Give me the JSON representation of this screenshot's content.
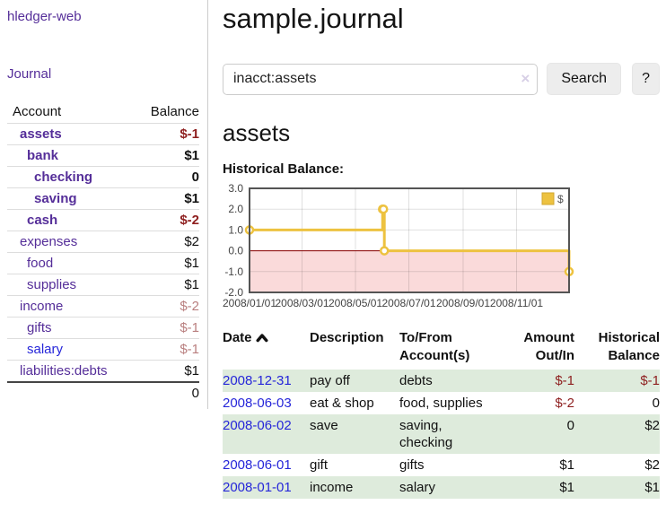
{
  "app": {
    "brand": "hledger-web"
  },
  "sidebar": {
    "journal_link": "Journal",
    "accounts_table": {
      "headers": {
        "account": "Account",
        "balance": "Balance"
      },
      "rows": [
        {
          "name": "assets",
          "balance": "$-1",
          "indent": 1,
          "bold": true,
          "balance_color": "negative",
          "link_color": "purple"
        },
        {
          "name": "bank",
          "balance": "$1",
          "indent": 2,
          "bold": true,
          "balance_color": "normal",
          "link_color": "purple"
        },
        {
          "name": "checking",
          "balance": "0",
          "indent": 3,
          "bold": true,
          "balance_color": "normal",
          "link_color": "purple"
        },
        {
          "name": "saving",
          "balance": "$1",
          "indent": 3,
          "bold": true,
          "balance_color": "normal",
          "link_color": "purple"
        },
        {
          "name": "cash",
          "balance": "$-2",
          "indent": 2,
          "bold": true,
          "balance_color": "negative",
          "link_color": "purple"
        },
        {
          "name": "expenses",
          "balance": "$2",
          "indent": 1,
          "bold": false,
          "balance_color": "normal",
          "link_color": "purple"
        },
        {
          "name": "food",
          "balance": "$1",
          "indent": 2,
          "bold": false,
          "balance_color": "normal",
          "link_color": "purple"
        },
        {
          "name": "supplies",
          "balance": "$1",
          "indent": 2,
          "bold": false,
          "balance_color": "normal",
          "link_color": "purple"
        },
        {
          "name": "income",
          "balance": "$-2",
          "indent": 1,
          "bold": false,
          "balance_color": "negative-muted",
          "link_color": "purple"
        },
        {
          "name": "gifts",
          "balance": "$-1",
          "indent": 2,
          "bold": false,
          "balance_color": "negative-muted",
          "link_color": "purple"
        },
        {
          "name": "salary",
          "balance": "$-1",
          "indent": 2,
          "bold": false,
          "balance_color": "negative-muted",
          "link_color": "blue"
        },
        {
          "name": "liabilities:debts",
          "balance": "$1",
          "indent": 1,
          "bold": false,
          "balance_color": "normal",
          "link_color": "purple"
        }
      ],
      "total": "0"
    }
  },
  "header": {
    "title": "sample.journal"
  },
  "search": {
    "value": "inacct:assets",
    "clear_icon": "×",
    "search_button": "Search",
    "help_button": "?"
  },
  "account_page": {
    "title": "assets",
    "chart_label": "Historical Balance:"
  },
  "chart_data": {
    "type": "line",
    "title": "Historical Balance:",
    "step": true,
    "grid": true,
    "legend_position": "top-right",
    "x_domain": [
      "2008-01-01",
      "2008-12-31"
    ],
    "x_ticks": [
      "2008/01/01",
      "2008/03/01",
      "2008/05/01",
      "2008/07/01",
      "2008/09/01",
      "2008/11/01"
    ],
    "y_ticks": [
      "3.0",
      "2.0",
      "1.0",
      "0.0",
      "-1.0",
      "-2.0"
    ],
    "ylim": [
      -2,
      3
    ],
    "series": [
      {
        "name": "$",
        "color": "#EDC240",
        "points": [
          {
            "date": "2008-01-01",
            "value": 1
          },
          {
            "date": "2008-06-01",
            "value": 2
          },
          {
            "date": "2008-06-02",
            "value": 2
          },
          {
            "date": "2008-06-03",
            "value": 0
          },
          {
            "date": "2008-12-31",
            "value": -1
          }
        ]
      }
    ],
    "negative_region_color": "#FADADA",
    "zero_line_color": "#8B0000",
    "border_color": "#545454",
    "tick_label_color": "#444444"
  },
  "register_table": {
    "headers": {
      "date": "Date",
      "sort_icon": "chevron-up",
      "description": "Description",
      "accounts": "To/From Account(s)",
      "amount": "Amount Out/In",
      "balance": "Historical Balance"
    },
    "rows": [
      {
        "date": "2008-12-31",
        "description": "pay off",
        "accounts": "debts",
        "amount": "$-1",
        "amount_negative": true,
        "balance": "$-1",
        "balance_negative": true
      },
      {
        "date": "2008-06-03",
        "description": "eat & shop",
        "accounts": "food, supplies",
        "amount": "$-2",
        "amount_negative": true,
        "balance": "0",
        "balance_negative": false
      },
      {
        "date": "2008-06-02",
        "description": "save",
        "accounts": "saving, checking",
        "amount": "0",
        "amount_negative": false,
        "balance": "$2",
        "balance_negative": false
      },
      {
        "date": "2008-06-01",
        "description": "gift",
        "accounts": "gifts",
        "amount": "$1",
        "amount_negative": false,
        "balance": "$2",
        "balance_negative": false
      },
      {
        "date": "2008-01-01",
        "description": "income",
        "accounts": "salary",
        "amount": "$1",
        "amount_negative": false,
        "balance": "$1",
        "balance_negative": false
      }
    ]
  },
  "colors": {
    "purple_link": "#552E99",
    "blue_link": "#2626D9",
    "negative": "#8E1F1F",
    "negative_muted": "#B97F7F",
    "row_stripe_green": "#DEEBDC",
    "chart_gold": "#EDC240",
    "chart_negative_fill": "#FADADA",
    "button_gray": "#EDEDED"
  }
}
